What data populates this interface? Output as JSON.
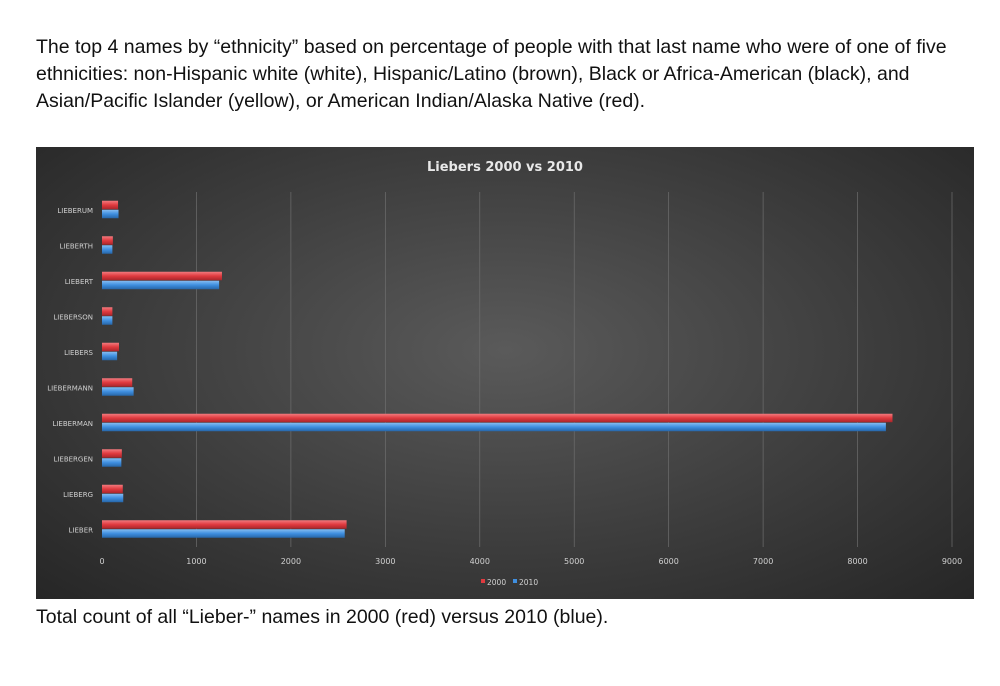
{
  "intro_text": "The top 4 names by “ethnicity” based on percentage of people with that last name who were of one of five ethnicities: non-Hispanic white (white), Hispanic/Latino (brown), Black or Africa-American (black), and Asian/Pacific Islander (yellow), or American Indian/Alaska Native (red).",
  "caption_text": "Total count of all “Lieber-” names in 2000 (red) versus 2010 (blue).",
  "colors": {
    "series_2000": "#e03a3f",
    "series_2010": "#3f8fe0",
    "background": "#3d3d3d"
  },
  "chart_data": {
    "type": "bar",
    "orientation": "horizontal",
    "title": "Liebers 2000 vs 2010",
    "categories": [
      "LIEBERUM",
      "LIEBERTH",
      "LIEBERT",
      "LIEBERSON",
      "LIEBERS",
      "LIEBERMANN",
      "LIEBERMAN",
      "LIEBERGEN",
      "LIEBERG",
      "LIEBER"
    ],
    "series": [
      {
        "name": "2000",
        "color": "#e03a3f",
        "values": [
          170,
          115,
          1270,
          110,
          180,
          320,
          8370,
          210,
          220,
          2590
        ]
      },
      {
        "name": "2010",
        "color": "#3f8fe0",
        "values": [
          175,
          110,
          1240,
          110,
          160,
          335,
          8300,
          205,
          225,
          2570
        ]
      }
    ],
    "xlim": [
      0,
      9000
    ],
    "xticks": [
      "0",
      "1000",
      "2000",
      "3000",
      "4000",
      "5000",
      "6000",
      "7000",
      "8000",
      "9000"
    ],
    "grid": "vertical",
    "legend_position": "bottom"
  }
}
